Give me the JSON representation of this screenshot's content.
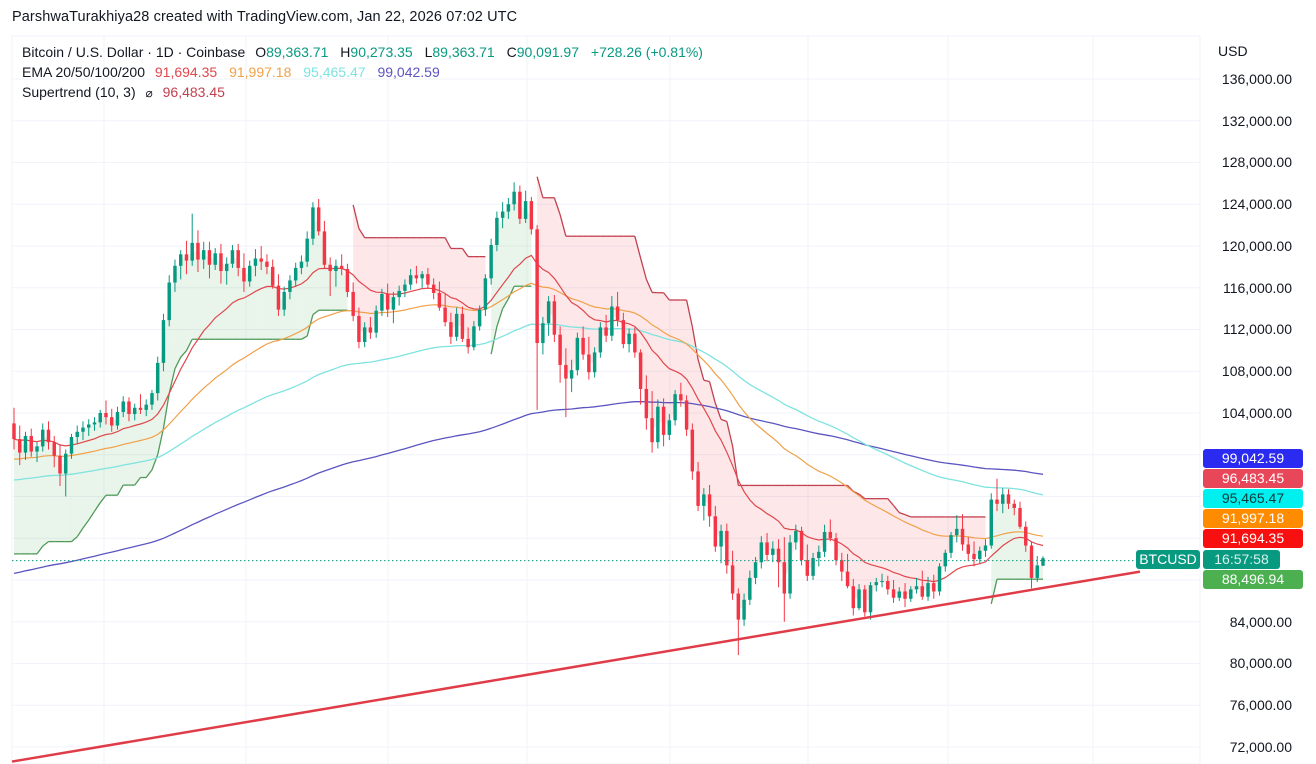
{
  "attribution": "ParshwaTurakhiya28 created with TradingView.com, Jan 22, 2026 07:02 UTC",
  "legend": {
    "symbol": "Bitcoin / U.S. Dollar · 1D · Coinbase",
    "open_label": "O",
    "open": "89,363.71",
    "high_label": "H",
    "high": "90,273.35",
    "low_label": "L",
    "low": "89,363.71",
    "close_label": "C",
    "close": "90,091.97",
    "change": "+728.26 (+0.81%)",
    "ema_label": "EMA 20/50/100/200",
    "ema20": "91,694.35",
    "ema50": "91,997.18",
    "ema100": "95,465.47",
    "ema200": "99,042.59",
    "supertrend_label": "Supertrend (10, 3)",
    "supertrend_icon": "empty-set-icon",
    "supertrend_value": "96,483.45"
  },
  "price_axis": {
    "currency": "USD",
    "ticks": [
      "136,000.00",
      "132,000.00",
      "128,000.00",
      "124,000.00",
      "120,000.00",
      "116,000.00",
      "112,000.00",
      "108,000.00",
      "104,000.00",
      "84,000.00",
      "80,000.00",
      "76,000.00",
      "72,000.00"
    ]
  },
  "price_tags": {
    "ema200": {
      "value": "99,042.59",
      "color": "#2a2af0"
    },
    "supertrend": {
      "value": "96,483.45",
      "color": "#e8475a"
    },
    "ema100": {
      "value": "95,465.47",
      "color": "#00f0f0"
    },
    "ema50": {
      "value": "91,997.18",
      "color": "#ff8c00"
    },
    "ema20": {
      "value": "91,694.35",
      "color": "#f80f0f"
    },
    "symbol": "BTCUSD",
    "countdown": "16:57:58",
    "last_price": {
      "value": "88,496.94",
      "color": "#4caf50"
    }
  },
  "colors": {
    "up": "#089981",
    "down": "#f23645",
    "ema20": "#e0474c",
    "ema50": "#f0a14a",
    "ema100": "#7fe3e0",
    "ema200": "#5b55c0",
    "supertrend_down": "#c2404e",
    "supertrend_up": "#4f9a5a",
    "trendline": "#e03c48",
    "grid": "#f0f3fa"
  },
  "chart_data": {
    "type": "candlestick",
    "title": "Bitcoin / U.S. Dollar · 1D · Coinbase",
    "xlabel": "",
    "ylabel": "USD",
    "ylim": [
      70000,
      138000
    ],
    "grid": true,
    "indicators": [
      "EMA 20",
      "EMA 50",
      "EMA 100",
      "EMA 200",
      "Supertrend (10, 3)",
      "Rising trendline"
    ],
    "last": {
      "open": 89363.71,
      "high": 90273.35,
      "low": 89363.71,
      "close": 90091.97,
      "change": 728.26,
      "change_pct": 0.81
    },
    "ema_last": {
      "ema20": 91694.35,
      "ema50": 91997.18,
      "ema100": 95465.47,
      "ema200": 99042.59
    },
    "supertrend_last": 96483.45,
    "last_price_tag": 88496.94,
    "trendline": {
      "x1": 12,
      "p1": 70600,
      "x2": 1150,
      "p2": 88800
    },
    "ohlc": [
      [
        103000,
        104500,
        100500,
        101500
      ],
      [
        101500,
        102800,
        99000,
        100200
      ],
      [
        100200,
        102200,
        99500,
        101800
      ],
      [
        101800,
        102500,
        99800,
        100300
      ],
      [
        100300,
        101200,
        99300,
        100800
      ],
      [
        100800,
        103000,
        100300,
        102400
      ],
      [
        102400,
        103200,
        100500,
        101200
      ],
      [
        101200,
        101800,
        98800,
        99900
      ],
      [
        99900,
        101000,
        97000,
        98200
      ],
      [
        98200,
        100500,
        96000,
        100100
      ],
      [
        100100,
        102000,
        99600,
        101700
      ],
      [
        101700,
        102800,
        101000,
        102200
      ],
      [
        102200,
        103200,
        101400,
        102600
      ],
      [
        102600,
        103400,
        101800,
        102900
      ],
      [
        102900,
        103600,
        102300,
        103100
      ],
      [
        103100,
        104300,
        102600,
        104000
      ],
      [
        104000,
        105200,
        102900,
        103600
      ],
      [
        103600,
        104400,
        102200,
        102800
      ],
      [
        102800,
        104600,
        102400,
        104100
      ],
      [
        104100,
        105600,
        103600,
        105100
      ],
      [
        105100,
        105500,
        103200,
        103900
      ],
      [
        103900,
        104900,
        103300,
        104500
      ],
      [
        104500,
        105800,
        103900,
        104300
      ],
      [
        104300,
        105300,
        103700,
        104800
      ],
      [
        104800,
        106200,
        104300,
        105900
      ],
      [
        105900,
        109400,
        105200,
        108800
      ],
      [
        108800,
        113500,
        108000,
        112900
      ],
      [
        112900,
        117200,
        112300,
        116500
      ],
      [
        116500,
        118700,
        115600,
        118100
      ],
      [
        118100,
        119600,
        116800,
        119200
      ],
      [
        119200,
        120500,
        117300,
        118600
      ],
      [
        118600,
        123100,
        118100,
        120300
      ],
      [
        120300,
        121500,
        117500,
        118700
      ],
      [
        118700,
        120400,
        117800,
        119600
      ],
      [
        119600,
        120400,
        116900,
        118200
      ],
      [
        118200,
        119800,
        117700,
        119300
      ],
      [
        119300,
        120200,
        116400,
        117600
      ],
      [
        117600,
        118900,
        116300,
        118300
      ],
      [
        118300,
        120100,
        117900,
        119600
      ],
      [
        119600,
        120200,
        117100,
        117900
      ],
      [
        117900,
        119300,
        115600,
        116600
      ],
      [
        116600,
        118600,
        116100,
        118100
      ],
      [
        118100,
        119700,
        117100,
        118800
      ],
      [
        118800,
        120000,
        117700,
        118500
      ],
      [
        118500,
        119200,
        117300,
        118000
      ],
      [
        118000,
        118700,
        115900,
        116200
      ],
      [
        116200,
        117300,
        113300,
        113900
      ],
      [
        113900,
        116100,
        113300,
        115600
      ],
      [
        115600,
        117200,
        114900,
        116700
      ],
      [
        116700,
        118400,
        116100,
        117900
      ],
      [
        117900,
        119100,
        117300,
        118500
      ],
      [
        118500,
        121400,
        118000,
        120700
      ],
      [
        120700,
        124200,
        120100,
        123700
      ],
      [
        123700,
        124500,
        121000,
        121400
      ],
      [
        121400,
        122400,
        117900,
        118200
      ],
      [
        118200,
        118900,
        115200,
        117600
      ],
      [
        117600,
        118700,
        116100,
        118100
      ],
      [
        118100,
        119200,
        117200,
        117800
      ],
      [
        117800,
        118300,
        115100,
        115600
      ],
      [
        115600,
        116500,
        112800,
        113300
      ],
      [
        113300,
        114100,
        110200,
        110800
      ],
      [
        110800,
        112700,
        110300,
        112200
      ],
      [
        112200,
        113200,
        111100,
        111700
      ],
      [
        111700,
        114300,
        111200,
        113800
      ],
      [
        113800,
        115900,
        113300,
        115400
      ],
      [
        115400,
        116400,
        113200,
        113900
      ],
      [
        113900,
        115600,
        112600,
        115100
      ],
      [
        115100,
        116200,
        114300,
        115700
      ],
      [
        115700,
        116800,
        115100,
        116300
      ],
      [
        116300,
        117800,
        115800,
        117200
      ],
      [
        117200,
        118100,
        116400,
        116900
      ],
      [
        116900,
        117600,
        116000,
        117300
      ],
      [
        117300,
        117900,
        115900,
        116300
      ],
      [
        116300,
        116900,
        114900,
        115500
      ],
      [
        115500,
        116600,
        113800,
        114100
      ],
      [
        114100,
        115400,
        112300,
        112700
      ],
      [
        112700,
        113600,
        110600,
        111300
      ],
      [
        111300,
        114100,
        110900,
        113500
      ],
      [
        113500,
        114200,
        110800,
        111100
      ],
      [
        111100,
        112200,
        109700,
        110300
      ],
      [
        110300,
        112800,
        110000,
        112300
      ],
      [
        112300,
        114300,
        111900,
        113900
      ],
      [
        113900,
        117300,
        113300,
        116900
      ],
      [
        116900,
        120700,
        116300,
        120100
      ],
      [
        120100,
        123300,
        119500,
        122700
      ],
      [
        122700,
        124200,
        121700,
        123300
      ],
      [
        123300,
        124600,
        122600,
        124000
      ],
      [
        124000,
        126100,
        123400,
        125200
      ],
      [
        125200,
        125800,
        122100,
        122600
      ],
      [
        122600,
        125300,
        122200,
        124300
      ],
      [
        124300,
        124700,
        121100,
        121600
      ],
      [
        121600,
        122000,
        104300,
        110700
      ],
      [
        110700,
        113200,
        109600,
        112600
      ],
      [
        112600,
        115200,
        111400,
        114700
      ],
      [
        114700,
        115300,
        110800,
        111500
      ],
      [
        111500,
        112300,
        106900,
        108600
      ],
      [
        108600,
        110200,
        103600,
        107300
      ],
      [
        107300,
        109100,
        106000,
        108100
      ],
      [
        108100,
        111700,
        107600,
        111200
      ],
      [
        111200,
        112300,
        109100,
        109600
      ],
      [
        109600,
        111300,
        107200,
        107900
      ],
      [
        107900,
        110300,
        107400,
        109800
      ],
      [
        109800,
        112700,
        109300,
        112200
      ],
      [
        112200,
        113400,
        110800,
        111400
      ],
      [
        111400,
        115200,
        110900,
        114200
      ],
      [
        114200,
        115600,
        112300,
        112900
      ],
      [
        112900,
        113600,
        110200,
        110600
      ],
      [
        110600,
        112100,
        109800,
        111600
      ],
      [
        111600,
        112200,
        109300,
        109800
      ],
      [
        109800,
        110100,
        104800,
        106300
      ],
      [
        106300,
        107600,
        102400,
        103500
      ],
      [
        103500,
        106100,
        100200,
        101200
      ],
      [
        101200,
        105300,
        100600,
        104600
      ],
      [
        104600,
        105400,
        100800,
        101900
      ],
      [
        101900,
        103900,
        101400,
        103300
      ],
      [
        103300,
        106200,
        102800,
        105800
      ],
      [
        105800,
        106900,
        104600,
        105200
      ],
      [
        105200,
        105700,
        101800,
        102400
      ],
      [
        102400,
        103000,
        97600,
        98400
      ],
      [
        98400,
        99300,
        94600,
        95100
      ],
      [
        95100,
        96800,
        93700,
        96200
      ],
      [
        96200,
        97100,
        93100,
        94100
      ],
      [
        94100,
        95100,
        90700,
        91200
      ],
      [
        91200,
        93300,
        89600,
        92700
      ],
      [
        92700,
        93400,
        88600,
        89400
      ],
      [
        89400,
        90800,
        86100,
        86700
      ],
      [
        86700,
        87200,
        80800,
        84200
      ],
      [
        84200,
        86700,
        83600,
        86100
      ],
      [
        86100,
        88900,
        85600,
        88200
      ],
      [
        88200,
        90200,
        87600,
        89700
      ],
      [
        89700,
        92200,
        89100,
        91600
      ],
      [
        91600,
        92500,
        89800,
        90400
      ],
      [
        90400,
        91700,
        89700,
        91000
      ],
      [
        91000,
        91900,
        87300,
        89700
      ],
      [
        89700,
        92100,
        84000,
        86700
      ],
      [
        86700,
        92300,
        86200,
        91600
      ],
      [
        91600,
        93300,
        90900,
        92700
      ],
      [
        92700,
        93100,
        89400,
        89900
      ],
      [
        89900,
        91400,
        87900,
        88400
      ],
      [
        88400,
        90600,
        88000,
        90100
      ],
      [
        90100,
        91300,
        89300,
        90700
      ],
      [
        90700,
        93300,
        90200,
        92600
      ],
      [
        92600,
        93800,
        91700,
        92000
      ],
      [
        92000,
        92500,
        89400,
        89900
      ],
      [
        89900,
        90600,
        87900,
        88800
      ],
      [
        88800,
        90500,
        87200,
        87400
      ],
      [
        87400,
        88100,
        84600,
        85300
      ],
      [
        85300,
        87600,
        85100,
        87100
      ],
      [
        87100,
        87500,
        84500,
        84900
      ],
      [
        84900,
        87800,
        84200,
        87500
      ],
      [
        87500,
        88200,
        86900,
        87800
      ],
      [
        87800,
        88600,
        87300,
        87900
      ],
      [
        87900,
        88400,
        86600,
        87100
      ],
      [
        87100,
        88000,
        85800,
        86300
      ],
      [
        86300,
        87300,
        86000,
        86900
      ],
      [
        86900,
        87700,
        85400,
        86200
      ],
      [
        86200,
        87400,
        85900,
        87100
      ],
      [
        87100,
        88200,
        86700,
        87400
      ],
      [
        87400,
        88900,
        86100,
        86400
      ],
      [
        86400,
        88300,
        86000,
        87700
      ],
      [
        87700,
        88500,
        86200,
        86900
      ],
      [
        86900,
        89600,
        86500,
        89300
      ],
      [
        89300,
        90900,
        88800,
        90600
      ],
      [
        90600,
        92600,
        90100,
        92300
      ],
      [
        92300,
        94200,
        91600,
        92900
      ],
      [
        92900,
        94300,
        90800,
        91400
      ],
      [
        91400,
        92100,
        89800,
        90500
      ],
      [
        90500,
        91700,
        89300,
        90000
      ],
      [
        90000,
        91200,
        89600,
        90800
      ],
      [
        90800,
        91900,
        90200,
        91300
      ],
      [
        91300,
        96300,
        91000,
        95700
      ],
      [
        95700,
        97700,
        94600,
        95300
      ],
      [
        95300,
        96800,
        94400,
        96200
      ],
      [
        96200,
        96700,
        94800,
        95300
      ],
      [
        95300,
        95700,
        94200,
        94900
      ],
      [
        94900,
        95500,
        92900,
        93100
      ],
      [
        93100,
        93600,
        90700,
        91300
      ],
      [
        91300,
        91700,
        87200,
        88200
      ],
      [
        88200,
        90300,
        87800,
        89400
      ],
      [
        89363.71,
        90273.35,
        89363.71,
        90091.97
      ]
    ]
  }
}
